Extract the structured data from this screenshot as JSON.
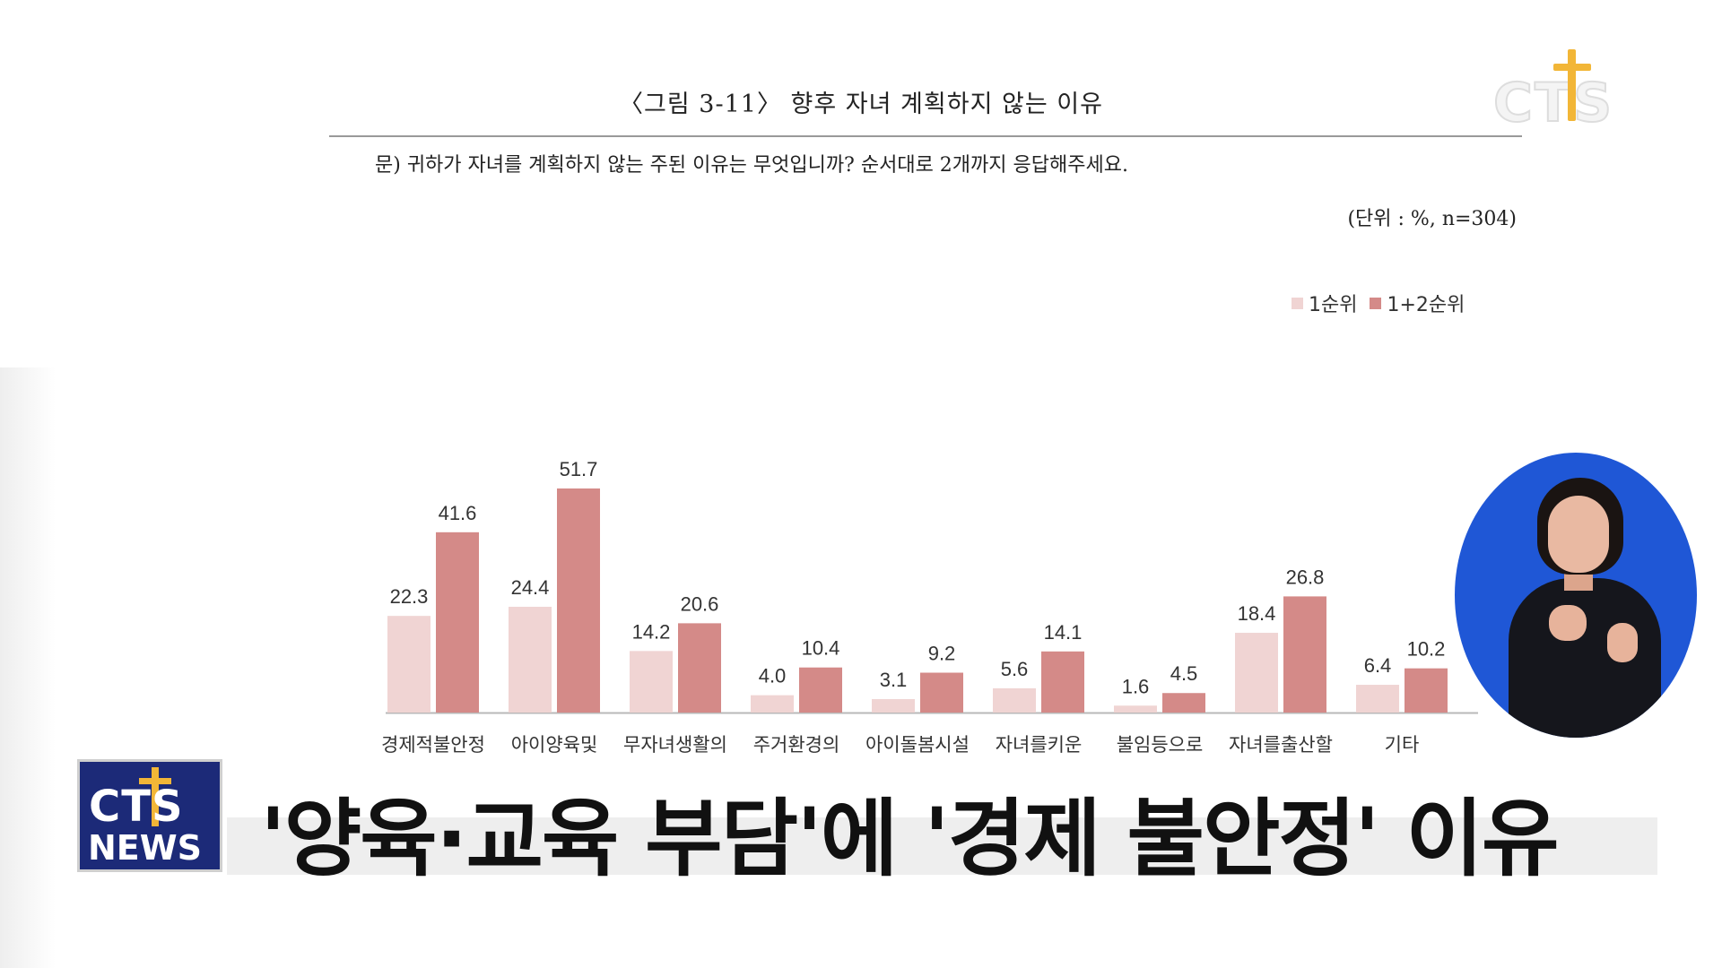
{
  "figure": {
    "title": "〈그림 3-11〉 향후 자녀 계획하지 않는 이유",
    "question": "문) 귀하가 자녀를 계획하지 않는 주된 이유는 무엇입니까? 순서대로 2개까지 응답해주세요.",
    "unit": "(단위 : %, n=304)"
  },
  "chart_data": {
    "type": "bar",
    "categories": [
      "경제적불안정",
      "아이양육및",
      "무자녀생활의",
      "주거환경의",
      "아이돌봄시설",
      "자녀를키운",
      "불임등으로",
      "자녀를출산할",
      "기타"
    ],
    "series": [
      {
        "name": "1순위",
        "color": "#f0d4d3",
        "values": [
          22.3,
          24.4,
          14.2,
          4.0,
          3.1,
          5.6,
          1.6,
          18.4,
          6.4
        ],
        "labels": [
          "22.3",
          "24.4",
          "14.2",
          "4.0",
          "3.1",
          "5.6",
          "1.6",
          "18.4",
          "6.4"
        ]
      },
      {
        "name": "1+2순위",
        "color": "#d48a88",
        "values": [
          41.6,
          51.7,
          20.6,
          10.4,
          9.2,
          14.1,
          4.5,
          26.8,
          10.2
        ],
        "labels": [
          "41.6",
          "51.7",
          "20.6",
          "10.4",
          "9.2",
          "14.1",
          "4.5",
          "26.8",
          "10.2"
        ]
      }
    ],
    "ylim": [
      0,
      55
    ],
    "legend": "top-right",
    "grid": false
  },
  "logos": {
    "top_right": "CTS",
    "news_cts": "CTS",
    "news_news": "NEWS"
  },
  "headline": "'양육·교육 부담'에 '경제 불안정' 이유"
}
